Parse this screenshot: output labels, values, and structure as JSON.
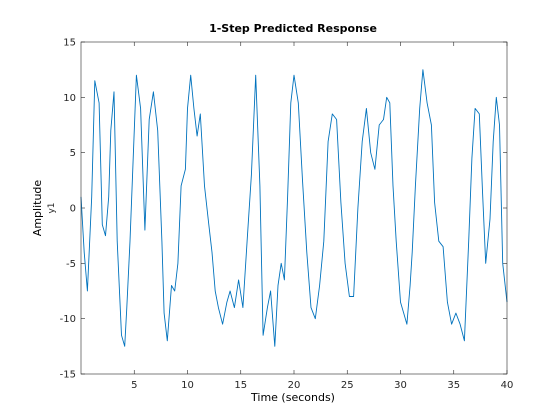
{
  "chart_data": {
    "type": "line",
    "title": "1-Step Predicted Response",
    "xlabel": "Time (seconds)",
    "ylabel": "Amplitude",
    "channel_label": "y1",
    "xlim": [
      0,
      40
    ],
    "ylim": [
      -15,
      15
    ],
    "xticks": [
      5,
      10,
      15,
      20,
      25,
      30,
      35,
      40
    ],
    "yticks": [
      -15,
      -10,
      -5,
      0,
      5,
      10,
      15
    ],
    "grid": false,
    "line_color": "#0072BD",
    "series": [
      {
        "x": [
          0.0,
          0.3,
          0.6,
          1.0,
          1.3,
          1.7,
          2.0,
          2.3,
          2.6,
          2.8,
          3.1,
          3.4,
          3.8,
          4.1,
          4.3,
          4.6,
          4.9,
          5.2,
          5.6,
          6.0,
          6.4,
          6.8,
          7.2,
          7.6,
          7.8,
          8.1,
          8.5,
          8.8,
          9.1,
          9.4,
          9.8,
          10.0,
          10.3,
          10.6,
          10.9,
          11.2,
          11.6,
          12.0,
          12.3,
          12.6,
          12.9,
          13.3,
          13.7,
          14.0,
          14.4,
          14.8,
          15.2,
          15.6,
          16.0,
          16.4,
          16.8,
          17.1,
          17.5,
          17.8,
          18.0,
          18.2,
          18.5,
          18.8,
          19.1,
          19.4,
          19.7,
          20.0,
          20.4,
          20.8,
          21.2,
          21.6,
          22.0,
          22.4,
          22.8,
          23.2,
          23.6,
          24.0,
          24.4,
          24.8,
          25.2,
          25.6,
          26.0,
          26.4,
          26.8,
          27.2,
          27.6,
          28.0,
          28.4,
          28.7,
          29.0,
          29.3,
          29.6,
          30.0,
          30.3,
          30.6,
          30.9,
          31.1,
          31.4,
          31.8,
          32.1,
          32.5,
          32.9,
          33.2,
          33.6,
          34.0,
          34.4,
          34.8,
          35.2,
          35.6,
          36.0,
          36.4,
          36.7,
          37.0,
          37.4,
          37.7,
          38.0,
          38.4,
          38.7,
          39.0,
          39.3,
          39.6,
          40.0
        ],
        "y": [
          1.0,
          -4.0,
          -7.5,
          1.0,
          11.5,
          9.5,
          -1.5,
          -2.5,
          1.0,
          7.0,
          10.5,
          -3.0,
          -11.5,
          -12.5,
          -9.0,
          -3.0,
          4.5,
          12.0,
          9.0,
          -2.0,
          8.0,
          10.5,
          7.0,
          -3.0,
          -9.5,
          -12.0,
          -7.0,
          -7.5,
          -5.0,
          2.0,
          3.5,
          9.0,
          12.0,
          9.0,
          6.5,
          8.5,
          2.0,
          -1.5,
          -4.0,
          -7.5,
          -9.0,
          -10.5,
          -8.5,
          -7.5,
          -9.0,
          -6.5,
          -9.0,
          -3.0,
          3.0,
          12.0,
          2.0,
          -11.5,
          -9.0,
          -7.5,
          -10.0,
          -12.5,
          -7.0,
          -5.0,
          -6.5,
          1.0,
          9.5,
          12.0,
          9.5,
          2.5,
          -4.0,
          -9.0,
          -10.0,
          -7.0,
          -3.0,
          6.0,
          8.5,
          8.0,
          0.5,
          -5.0,
          -8.0,
          -8.0,
          0.0,
          6.0,
          9.0,
          5.0,
          3.5,
          7.5,
          8.0,
          10.0,
          9.5,
          2.0,
          -3.0,
          -8.5,
          -9.5,
          -10.5,
          -7.0,
          -4.0,
          2.0,
          9.0,
          12.5,
          9.5,
          7.5,
          0.5,
          -3.0,
          -3.5,
          -8.5,
          -10.5,
          -9.5,
          -10.5,
          -12.0,
          -3.0,
          4.5,
          9.0,
          8.5,
          1.5,
          -5.0,
          -1.0,
          6.0,
          10.0,
          7.5,
          -5.0,
          -8.5
        ]
      }
    ]
  }
}
